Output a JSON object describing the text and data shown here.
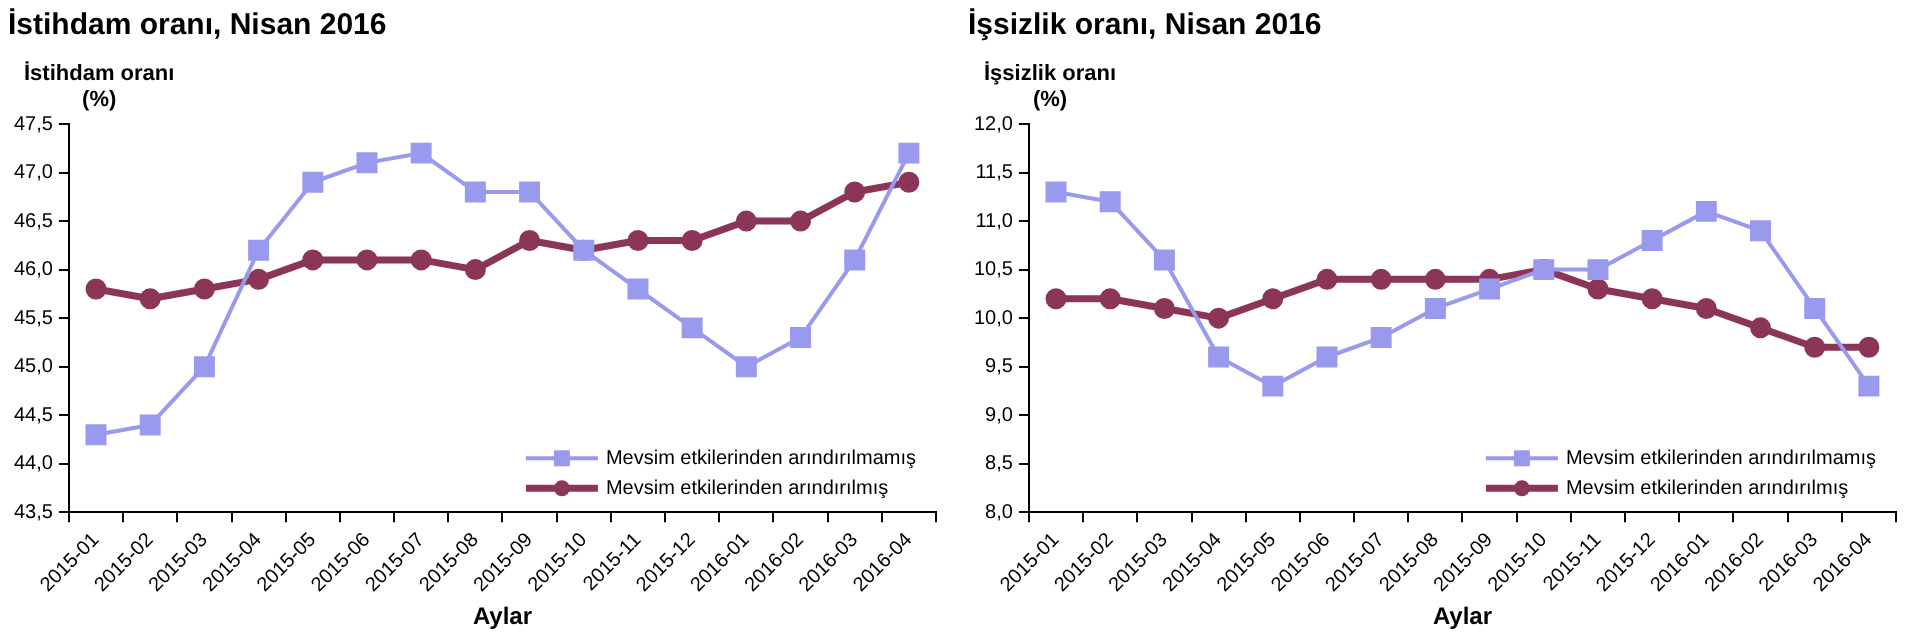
{
  "chart_data": [
    {
      "type": "line",
      "title": "İstihdam oranı, Nisan 2016",
      "ylabel": "İstihdam oranı\n(%)",
      "xlabel": "Aylar",
      "categories": [
        "2015-01",
        "2015-02",
        "2015-03",
        "2015-04",
        "2015-05",
        "2015-06",
        "2015-07",
        "2015-08",
        "2015-09",
        "2015-10",
        "2015-11",
        "2015-12",
        "2016-01",
        "2016-02",
        "2016-03",
        "2016-04"
      ],
      "series": [
        {
          "name": "Mevsim etkilerinden arındırılmamış",
          "color": "#9999ee",
          "marker": "square",
          "values": [
            44.3,
            44.4,
            45.0,
            46.2,
            46.9,
            47.1,
            47.2,
            46.8,
            46.8,
            46.2,
            45.8,
            45.4,
            45.0,
            45.3,
            46.1,
            47.2
          ]
        },
        {
          "name": "Mevsim etkilerinden arındırılmış",
          "color": "#8b3558",
          "marker": "circle",
          "values": [
            45.8,
            45.7,
            45.8,
            45.9,
            46.1,
            46.1,
            46.1,
            46.0,
            46.3,
            46.2,
            46.3,
            46.3,
            46.5,
            46.5,
            46.8,
            46.9
          ]
        }
      ],
      "ylim": [
        43.5,
        47.5
      ],
      "yticks": [
        {
          "value": 43.5,
          "label": "43,5"
        },
        {
          "value": 44,
          "label": "44,0"
        },
        {
          "value": 44.5,
          "label": "44,5"
        },
        {
          "value": 45,
          "label": "45,0"
        },
        {
          "value": 45.5,
          "label": "45,5"
        },
        {
          "value": 46,
          "label": "46,0"
        },
        {
          "value": 46.5,
          "label": "46,5"
        },
        {
          "value": 47,
          "label": "47,0"
        },
        {
          "value": 47.5,
          "label": "47,5"
        }
      ],
      "grid": false,
      "legend": "bottom right"
    },
    {
      "type": "line",
      "title": "İşsizlik oranı, Nisan 2016",
      "ylabel": "İşsizlik oranı\n(%)",
      "xlabel": "Aylar",
      "categories": [
        "2015-01",
        "2015-02",
        "2015-03",
        "2015-04",
        "2015-05",
        "2015-06",
        "2015-07",
        "2015-08",
        "2015-09",
        "2015-10",
        "2015-11",
        "2015-12",
        "2016-01",
        "2016-02",
        "2016-03",
        "2016-04"
      ],
      "series": [
        {
          "name": "Mevsim etkilerinden arındırılmamış",
          "color": "#9999ee",
          "marker": "square",
          "values": [
            11.3,
            11.2,
            10.6,
            9.6,
            9.3,
            9.6,
            9.8,
            10.1,
            10.3,
            10.5,
            10.5,
            10.8,
            11.1,
            10.9,
            10.1,
            9.3
          ]
        },
        {
          "name": "Mevsim etkilerinden arındırılmış",
          "color": "#8b3558",
          "marker": "circle",
          "values": [
            10.2,
            10.2,
            10.1,
            10.0,
            10.2,
            10.4,
            10.4,
            10.4,
            10.4,
            10.5,
            10.3,
            10.2,
            10.1,
            9.9,
            9.7,
            9.7
          ]
        }
      ],
      "ylim": [
        8,
        12
      ],
      "yticks": [
        {
          "value": 8,
          "label": "8,0"
        },
        {
          "value": 8.5,
          "label": "8,5"
        },
        {
          "value": 9,
          "label": "9,0"
        },
        {
          "value": 9.5,
          "label": "9,5"
        },
        {
          "value": 10,
          "label": "10,0"
        },
        {
          "value": 10.5,
          "label": "10,5"
        },
        {
          "value": 11,
          "label": "11,0"
        },
        {
          "value": 11.5,
          "label": "11,5"
        },
        {
          "value": 12,
          "label": "12,0"
        }
      ],
      "grid": false,
      "legend": "bottom right"
    }
  ]
}
